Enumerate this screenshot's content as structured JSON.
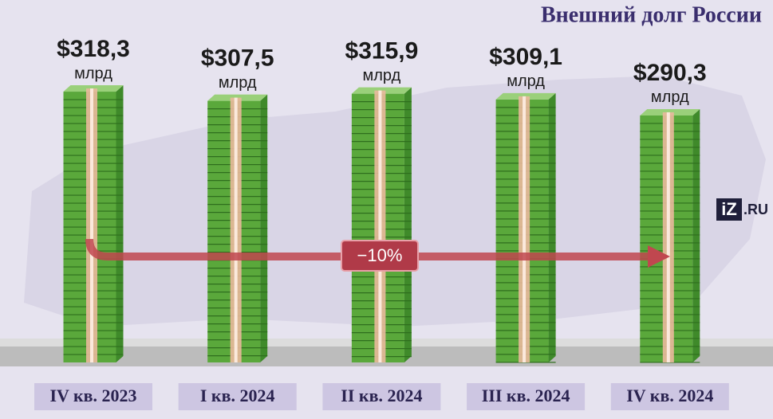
{
  "chart_data": {
    "type": "bar",
    "title": "Внешний долг России",
    "categories": [
      "IV кв. 2023",
      "I кв. 2024",
      "II кв. 2024",
      "III кв. 2024",
      "IV кв. 2024"
    ],
    "values": [
      318.3,
      307.5,
      315.9,
      309.1,
      290.3
    ],
    "value_labels": [
      "$318,3",
      "$307,5",
      "$315,9",
      "$309,1",
      "$290,3"
    ],
    "unit": "млрд",
    "color": "#5aa83b",
    "annotation": "−10%",
    "logo": "iZ",
    "logo_suffix": ".RU"
  }
}
